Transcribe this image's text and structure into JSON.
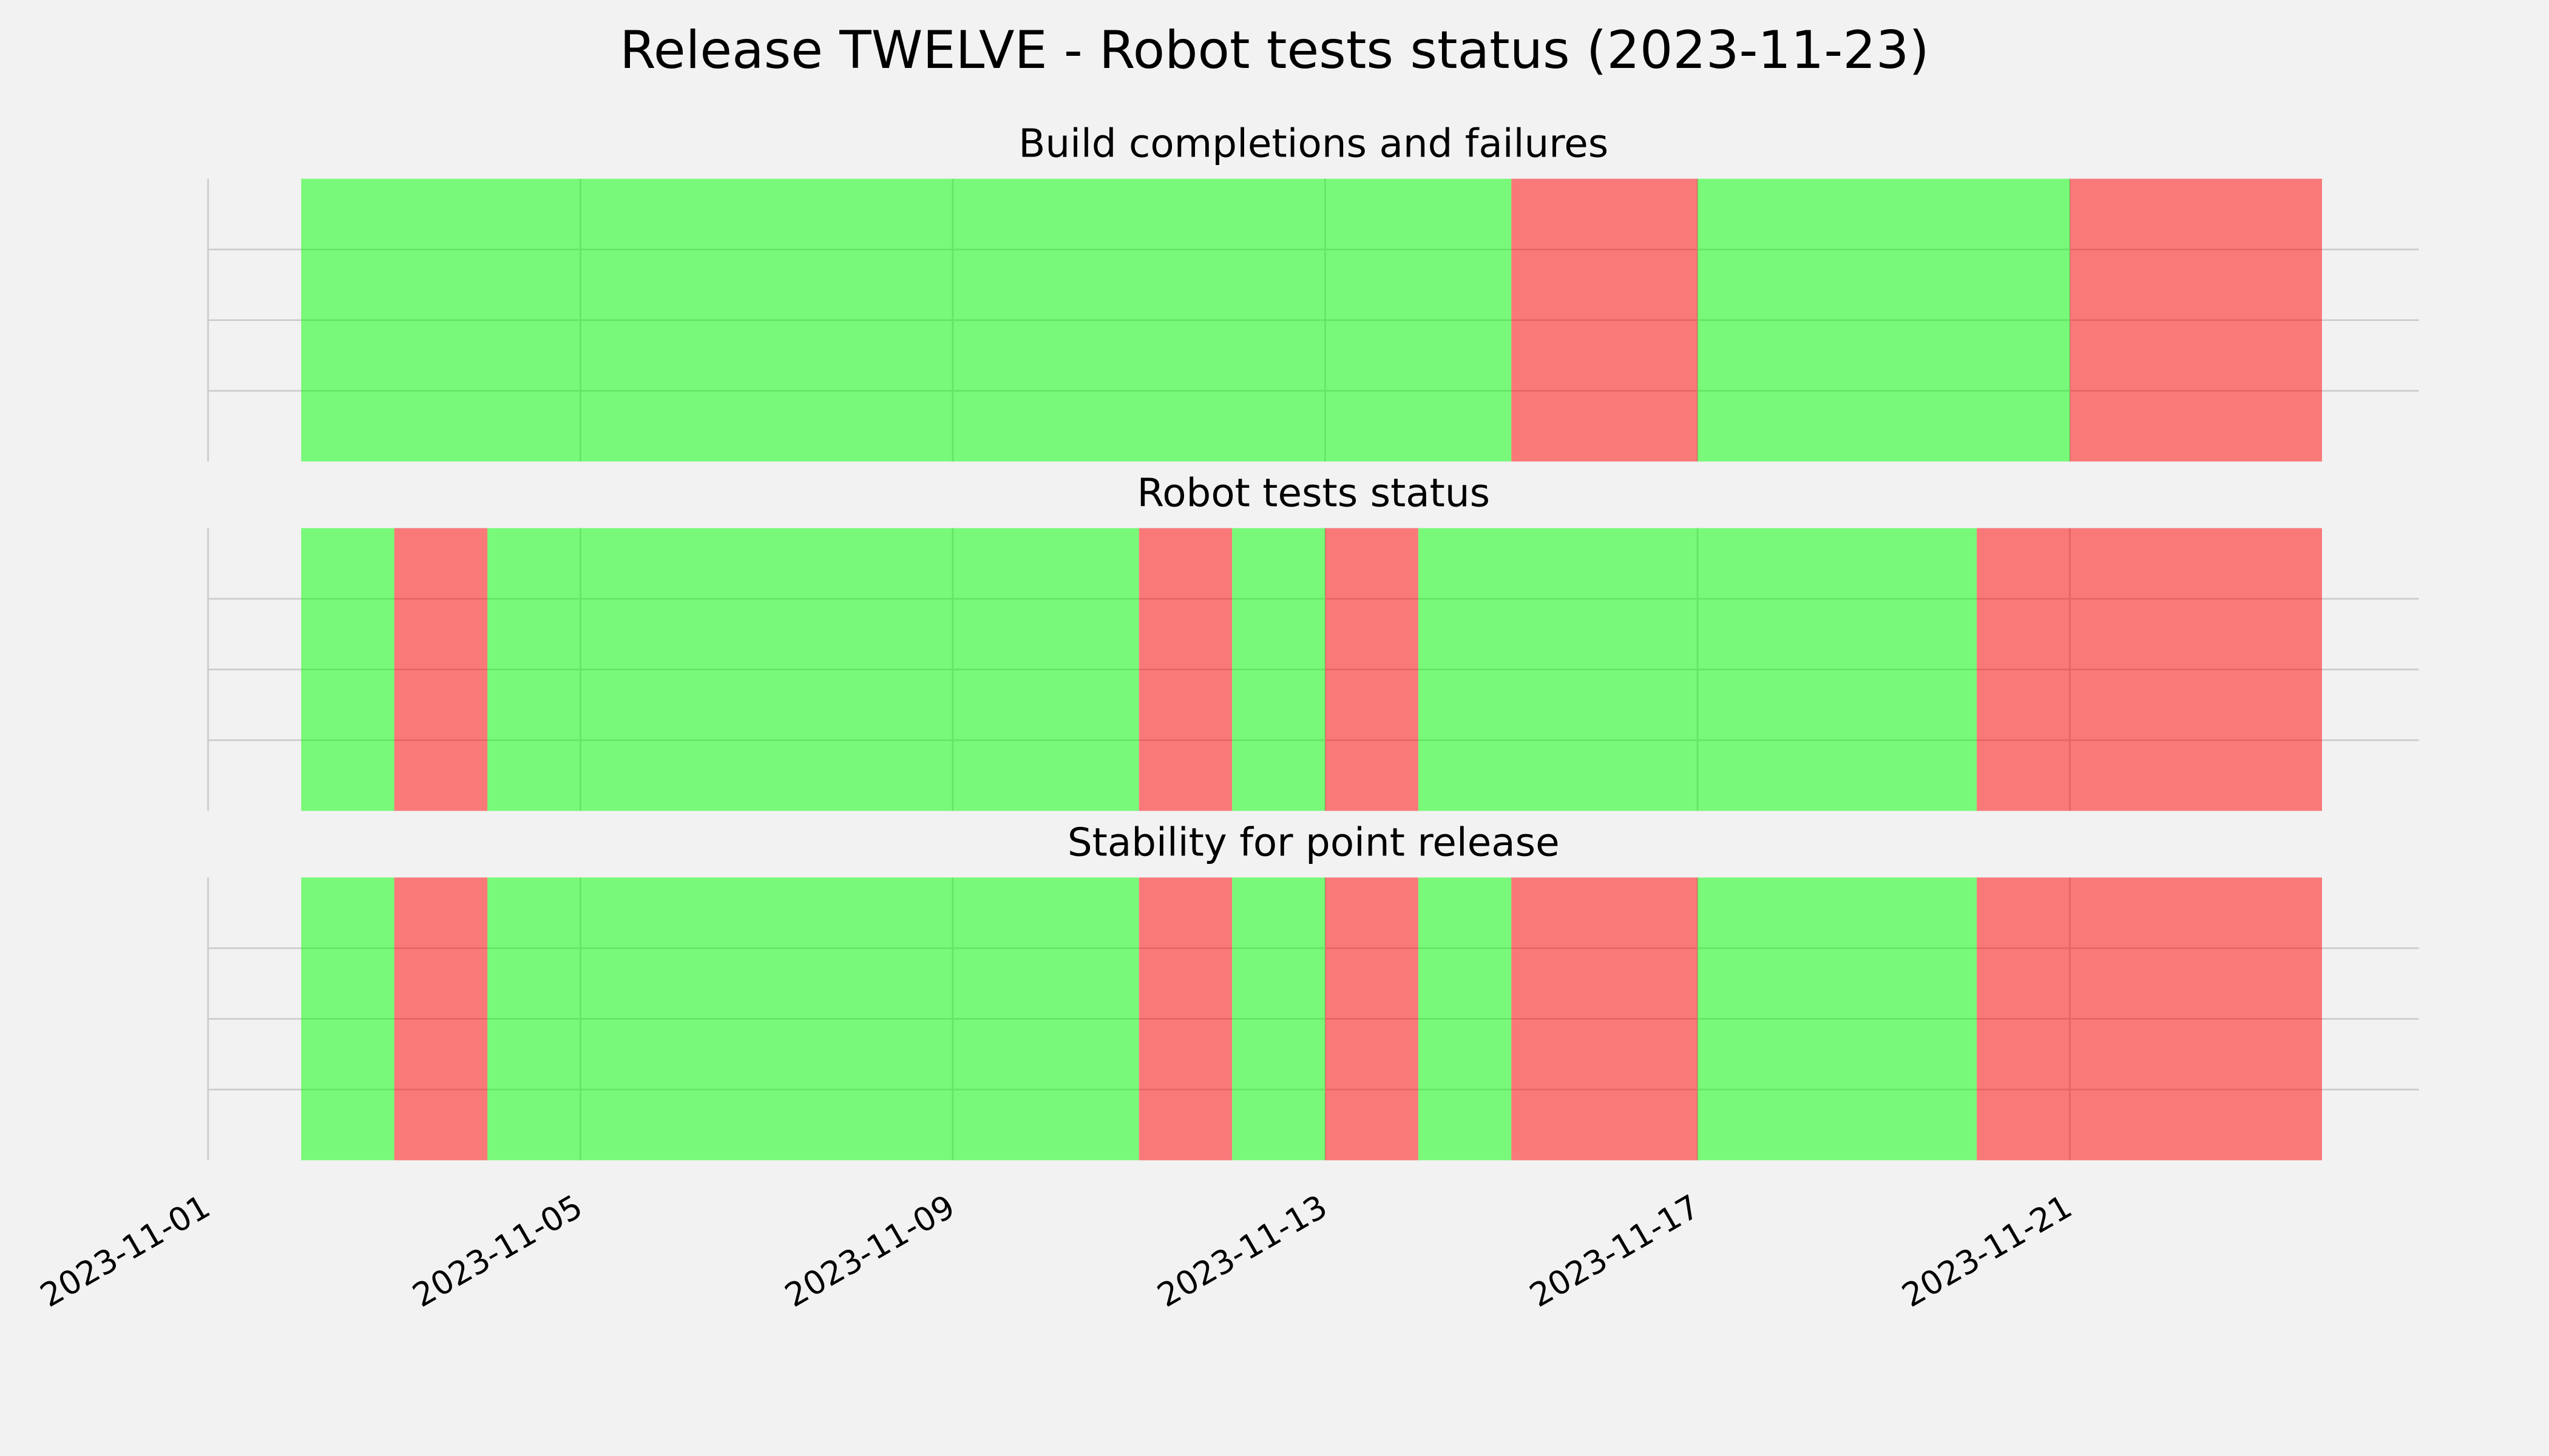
{
  "title": "Release TWELVE - Robot tests status (2023-11-23)",
  "chart_data": [
    {
      "type": "timeline",
      "title": "Build completions and failures",
      "xlim": [
        "2023-11-01",
        "2023-11-24T18:00"
      ],
      "xticks": [
        "2023-11-01",
        "2023-11-05",
        "2023-11-09",
        "2023-11-13",
        "2023-11-17",
        "2023-11-21"
      ],
      "ylim": [
        0,
        1
      ],
      "yticks": [
        0.25,
        0.5,
        0.75
      ],
      "grid": true,
      "alpha": 0.5,
      "spans": [
        {
          "start": "2023-11-02",
          "end": "2023-11-15",
          "color": "#00ff00"
        },
        {
          "start": "2023-11-15",
          "end": "2023-11-17",
          "color": "#ff0000"
        },
        {
          "start": "2023-11-17",
          "end": "2023-11-21",
          "color": "#00ff00"
        },
        {
          "start": "2023-11-21",
          "end": "2023-11-23T17:00",
          "color": "#ff0000"
        }
      ]
    },
    {
      "type": "timeline",
      "title": "Robot tests status",
      "xlim": [
        "2023-11-01",
        "2023-11-24T18:00"
      ],
      "xticks": [
        "2023-11-01",
        "2023-11-05",
        "2023-11-09",
        "2023-11-13",
        "2023-11-17",
        "2023-11-21"
      ],
      "ylim": [
        0,
        1
      ],
      "yticks": [
        0.25,
        0.5,
        0.75
      ],
      "grid": true,
      "alpha": 0.5,
      "spans": [
        {
          "start": "2023-11-02",
          "end": "2023-11-03",
          "color": "#00ff00"
        },
        {
          "start": "2023-11-03",
          "end": "2023-11-04",
          "color": "#ff0000"
        },
        {
          "start": "2023-11-04",
          "end": "2023-11-11",
          "color": "#00ff00"
        },
        {
          "start": "2023-11-11",
          "end": "2023-11-12",
          "color": "#ff0000"
        },
        {
          "start": "2023-11-12",
          "end": "2023-11-13",
          "color": "#00ff00"
        },
        {
          "start": "2023-11-13",
          "end": "2023-11-14",
          "color": "#ff0000"
        },
        {
          "start": "2023-11-14",
          "end": "2023-11-20",
          "color": "#00ff00"
        },
        {
          "start": "2023-11-20",
          "end": "2023-11-23T17:00",
          "color": "#ff0000"
        }
      ]
    },
    {
      "type": "timeline",
      "title": "Stability for point release",
      "xlim": [
        "2023-11-01",
        "2023-11-24T18:00"
      ],
      "xticks": [
        "2023-11-01",
        "2023-11-05",
        "2023-11-09",
        "2023-11-13",
        "2023-11-17",
        "2023-11-21"
      ],
      "ylim": [
        0,
        1
      ],
      "yticks": [
        0.25,
        0.5,
        0.75
      ],
      "grid": true,
      "alpha": 0.5,
      "spans": [
        {
          "start": "2023-11-02",
          "end": "2023-11-03",
          "color": "#00ff00"
        },
        {
          "start": "2023-11-03",
          "end": "2023-11-04",
          "color": "#ff0000"
        },
        {
          "start": "2023-11-04",
          "end": "2023-11-11",
          "color": "#00ff00"
        },
        {
          "start": "2023-11-11",
          "end": "2023-11-12",
          "color": "#ff0000"
        },
        {
          "start": "2023-11-12",
          "end": "2023-11-13",
          "color": "#00ff00"
        },
        {
          "start": "2023-11-13",
          "end": "2023-11-14",
          "color": "#ff0000"
        },
        {
          "start": "2023-11-14",
          "end": "2023-11-15",
          "color": "#00ff00"
        },
        {
          "start": "2023-11-15",
          "end": "2023-11-17",
          "color": "#ff0000"
        },
        {
          "start": "2023-11-17",
          "end": "2023-11-20",
          "color": "#00ff00"
        },
        {
          "start": "2023-11-20",
          "end": "2023-11-23T17:00",
          "color": "#ff0000"
        }
      ]
    }
  ]
}
